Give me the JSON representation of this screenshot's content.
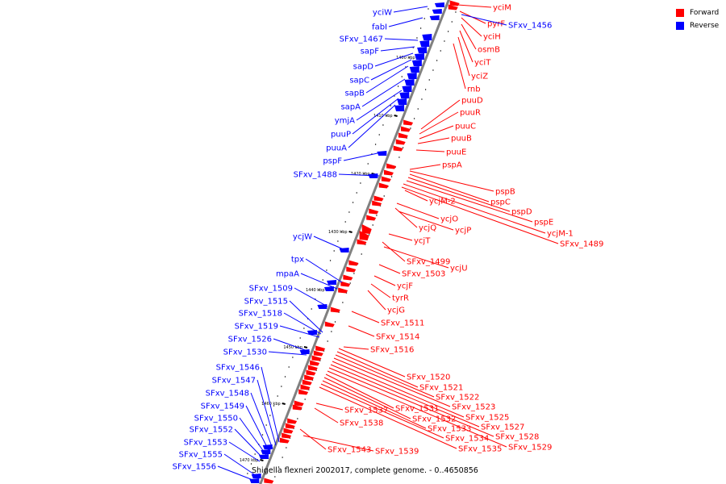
{
  "legend": {
    "forward_label": "Forward",
    "reverse_label": "Reverse",
    "forward_color": "#ff0000",
    "reverse_color": "#0000ff"
  },
  "caption": "Shigella flexneri 2002017, complete genome. - 0..4650856",
  "map": {
    "backbone_color": "#808080",
    "label_line_color_forward": "#ff0000",
    "label_line_color_reverse": "#0000ff",
    "ticks": [
      "1400 kbp",
      "1410 kbp",
      "1420 kbp",
      "1430 kbp",
      "1440 kbp",
      "1450 kbp",
      "1460 kbp",
      "1470 kbp"
    ],
    "forward_genes": [
      "yciM",
      "pyrF",
      "yciH",
      "osmB",
      "yciT",
      "yciZ",
      "rnb",
      "puuD",
      "puuR",
      "puuC",
      "puuB",
      "puuE",
      "pspA",
      "pspB",
      "pspC",
      "pspD",
      "pspE",
      "ycjM-1",
      "SFxv_1489",
      "ycjM-2",
      "ycjO",
      "ycjQ",
      "ycjP",
      "ycjT",
      "SFxv_1499",
      "ycjU",
      "SFxv_1503",
      "ycjF",
      "tyrR",
      "ycjG",
      "SFxv_1511",
      "SFxv_1514",
      "SFxv_1516",
      "SFxv_1520",
      "SFxv_1521",
      "SFxv_1522",
      "SFxv_1523",
      "SFxv_1525",
      "SFxv_1527",
      "SFxv_1528",
      "SFxv_1529",
      "SFxv_1531",
      "SFxv_1532",
      "SFxv_1533",
      "SFxv_1534",
      "SFxv_1535",
      "SFxv_1537",
      "SFxv_1538",
      "SFxv_1543",
      "SFxv_1539"
    ],
    "reverse_genes": [
      "SFxv_1456",
      "yciW",
      "fabI",
      "SFxv_1467",
      "sapF",
      "sapD",
      "sapC",
      "sapB",
      "sapA",
      "ymjA",
      "puuP",
      "puuA",
      "pspF",
      "SFxv_1488",
      "ycjW",
      "tpx",
      "mpaA",
      "SFxv_1509",
      "SFxv_1515",
      "SFxv_1518",
      "SFxv_1519",
      "SFxv_1526",
      "SFxv_1530",
      "SFxv_1546",
      "SFxv_1547",
      "SFxv_1548",
      "SFxv_1549",
      "SFxv_1550",
      "SFxv_1552",
      "SFxv_1553",
      "SFxv_1555",
      "SFxv_1556"
    ]
  }
}
